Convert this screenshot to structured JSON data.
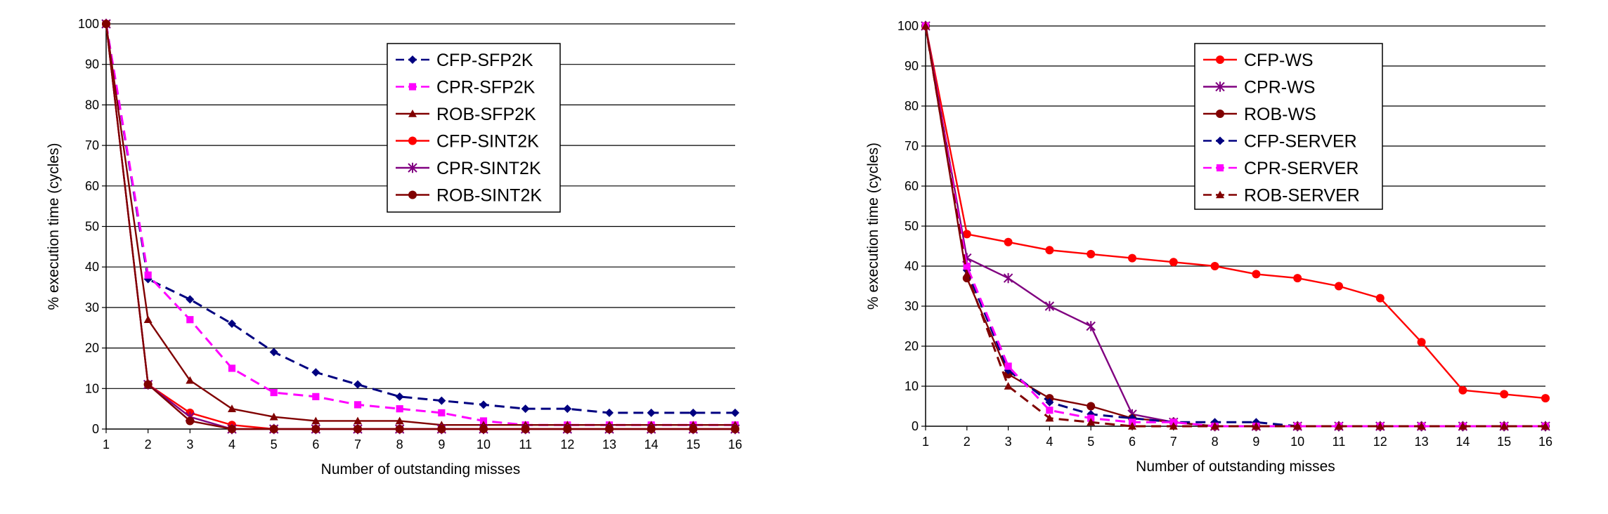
{
  "chart_data": [
    {
      "type": "line",
      "xlabel": "Number of outstanding misses",
      "ylabel": "% execution time (cycles)",
      "x": [
        1,
        2,
        3,
        4,
        5,
        6,
        7,
        8,
        9,
        10,
        11,
        12,
        13,
        14,
        15,
        16
      ],
      "xlim": [
        1,
        16
      ],
      "ylim": [
        0,
        100
      ],
      "yticks": [
        0,
        10,
        20,
        30,
        40,
        50,
        60,
        70,
        80,
        90,
        100
      ],
      "grid": "horizontal",
      "legend": "top-center",
      "series": [
        {
          "name": "CFP-SFP2K",
          "color": "#000080",
          "dash": "dashed",
          "marker": "diamond",
          "values": [
            100,
            37,
            32,
            26,
            19,
            14,
            11,
            8,
            7,
            6,
            5,
            5,
            4,
            4,
            4,
            4
          ]
        },
        {
          "name": "CPR-SFP2K",
          "color": "#ff00ff",
          "dash": "dashed",
          "marker": "square",
          "values": [
            100,
            38,
            27,
            15,
            9,
            8,
            6,
            5,
            4,
            2,
            1,
            1,
            1,
            1,
            1,
            1
          ]
        },
        {
          "name": "ROB-SFP2K",
          "color": "#800000",
          "dash": "solid",
          "marker": "triangle",
          "values": [
            100,
            27,
            12,
            5,
            3,
            2,
            2,
            2,
            1,
            1,
            1,
            1,
            1,
            1,
            1,
            1
          ]
        },
        {
          "name": "CFP-SINT2K",
          "color": "#ff0000",
          "dash": "solid",
          "marker": "circle",
          "values": [
            100,
            11,
            4,
            1,
            0,
            0,
            0,
            0,
            0,
            0,
            0,
            0,
            0,
            0,
            0,
            0
          ]
        },
        {
          "name": "CPR-SINT2K",
          "color": "#800080",
          "dash": "solid",
          "marker": "star",
          "values": [
            100,
            11,
            3,
            0,
            0,
            0,
            0,
            0,
            0,
            0,
            0,
            0,
            0,
            0,
            0,
            0
          ]
        },
        {
          "name": "ROB-SINT2K",
          "color": "#800000",
          "dash": "solid",
          "marker": "circle",
          "values": [
            100,
            11,
            2,
            0,
            0,
            0,
            0,
            0,
            0,
            0,
            0,
            0,
            0,
            0,
            0,
            0
          ]
        }
      ]
    },
    {
      "type": "line",
      "xlabel": "Number of outstanding misses",
      "ylabel": "% execution time (cycles)",
      "x": [
        1,
        2,
        3,
        4,
        5,
        6,
        7,
        8,
        9,
        10,
        11,
        12,
        13,
        14,
        15,
        16
      ],
      "xlim": [
        1,
        16
      ],
      "ylim": [
        0,
        100
      ],
      "yticks": [
        0,
        10,
        20,
        30,
        40,
        50,
        60,
        70,
        80,
        90,
        100
      ],
      "grid": "horizontal",
      "legend": "top-center",
      "series": [
        {
          "name": "CFP-WS",
          "color": "#ff0000",
          "dash": "solid",
          "marker": "circle",
          "values": [
            100,
            48,
            46,
            44,
            43,
            42,
            41,
            40,
            38,
            37,
            35,
            32,
            21,
            9,
            8,
            7
          ]
        },
        {
          "name": "CPR-WS",
          "color": "#800080",
          "dash": "solid",
          "marker": "star",
          "values": [
            100,
            42,
            37,
            30,
            25,
            3,
            1,
            0,
            0,
            0,
            0,
            0,
            0,
            0,
            0,
            0
          ]
        },
        {
          "name": "ROB-WS",
          "color": "#800000",
          "dash": "solid",
          "marker": "circle",
          "values": [
            100,
            37,
            13,
            7,
            5,
            2,
            1,
            0,
            0,
            0,
            0,
            0,
            0,
            0,
            0,
            0
          ]
        },
        {
          "name": "CFP-SERVER",
          "color": "#000080",
          "dash": "dashed",
          "marker": "diamond",
          "values": [
            100,
            39,
            14,
            6,
            3,
            2,
            1,
            1,
            1,
            0,
            0,
            0,
            0,
            0,
            0,
            0
          ]
        },
        {
          "name": "CPR-SERVER",
          "color": "#ff00ff",
          "dash": "dashed",
          "marker": "square",
          "values": [
            100,
            40,
            15,
            4,
            2,
            1,
            1,
            0,
            0,
            0,
            0,
            0,
            0,
            0,
            0,
            0
          ]
        },
        {
          "name": "ROB-SERVER",
          "color": "#800000",
          "dash": "dashed",
          "marker": "triangle",
          "values": [
            100,
            38,
            10,
            2,
            1,
            0,
            0,
            0,
            0,
            0,
            0,
            0,
            0,
            0,
            0,
            0
          ]
        }
      ]
    }
  ]
}
